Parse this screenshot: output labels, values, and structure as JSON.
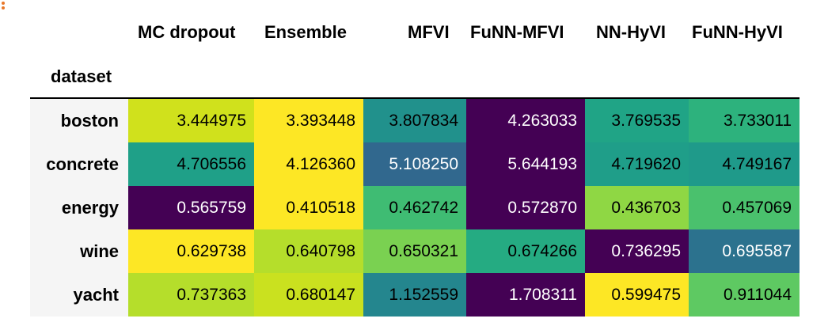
{
  "columns": [
    "MC dropout",
    "Ensemble",
    "MFVI",
    "FuNN-MFVI",
    "NN-HyVI",
    "FuNN-HyVI"
  ],
  "index_name": "dataset",
  "rows": [
    {
      "label": "boston",
      "values": [
        "3.444975",
        "3.393448",
        "3.807834",
        "4.263033",
        "3.769535",
        "3.733011"
      ],
      "bg": [
        "#d0e11c",
        "#fde725",
        "#21918c",
        "#440154",
        "#20a486",
        "#2db27d"
      ],
      "fg": [
        "#000000",
        "#000000",
        "#000000",
        "#ffffff",
        "#000000",
        "#000000"
      ]
    },
    {
      "label": "concrete",
      "values": [
        "4.706556",
        "4.126360",
        "5.108250",
        "5.644193",
        "4.719620",
        "4.749167"
      ],
      "bg": [
        "#1fa088",
        "#fde725",
        "#31688e",
        "#440154",
        "#1f9e89",
        "#1f9a8a"
      ],
      "fg": [
        "#000000",
        "#000000",
        "#ffffff",
        "#ffffff",
        "#000000",
        "#000000"
      ]
    },
    {
      "label": "energy",
      "values": [
        "0.565759",
        "0.410518",
        "0.462742",
        "0.572870",
        "0.436703",
        "0.457069"
      ],
      "bg": [
        "#440154",
        "#fde725",
        "#3fbc73",
        "#440154",
        "#8fd744",
        "#4ac16d"
      ],
      "fg": [
        "#ffffff",
        "#000000",
        "#000000",
        "#ffffff",
        "#000000",
        "#000000"
      ]
    },
    {
      "label": "wine",
      "values": [
        "0.629738",
        "0.640798",
        "0.650321",
        "0.674266",
        "0.736295",
        "0.695587"
      ],
      "bg": [
        "#fde725",
        "#b5de2b",
        "#7ad151",
        "#25ab82",
        "#440154",
        "#2c728e"
      ],
      "fg": [
        "#000000",
        "#000000",
        "#000000",
        "#000000",
        "#ffffff",
        "#ffffff"
      ]
    },
    {
      "label": "yacht",
      "values": [
        "0.737363",
        "0.680147",
        "1.152559",
        "1.708311",
        "0.599475",
        "0.911044"
      ],
      "bg": [
        "#b5de2b",
        "#cae11f",
        "#24868e",
        "#440154",
        "#fde725",
        "#5ec962"
      ],
      "fg": [
        "#000000",
        "#000000",
        "#000000",
        "#ffffff",
        "#000000",
        "#000000"
      ]
    }
  ]
}
